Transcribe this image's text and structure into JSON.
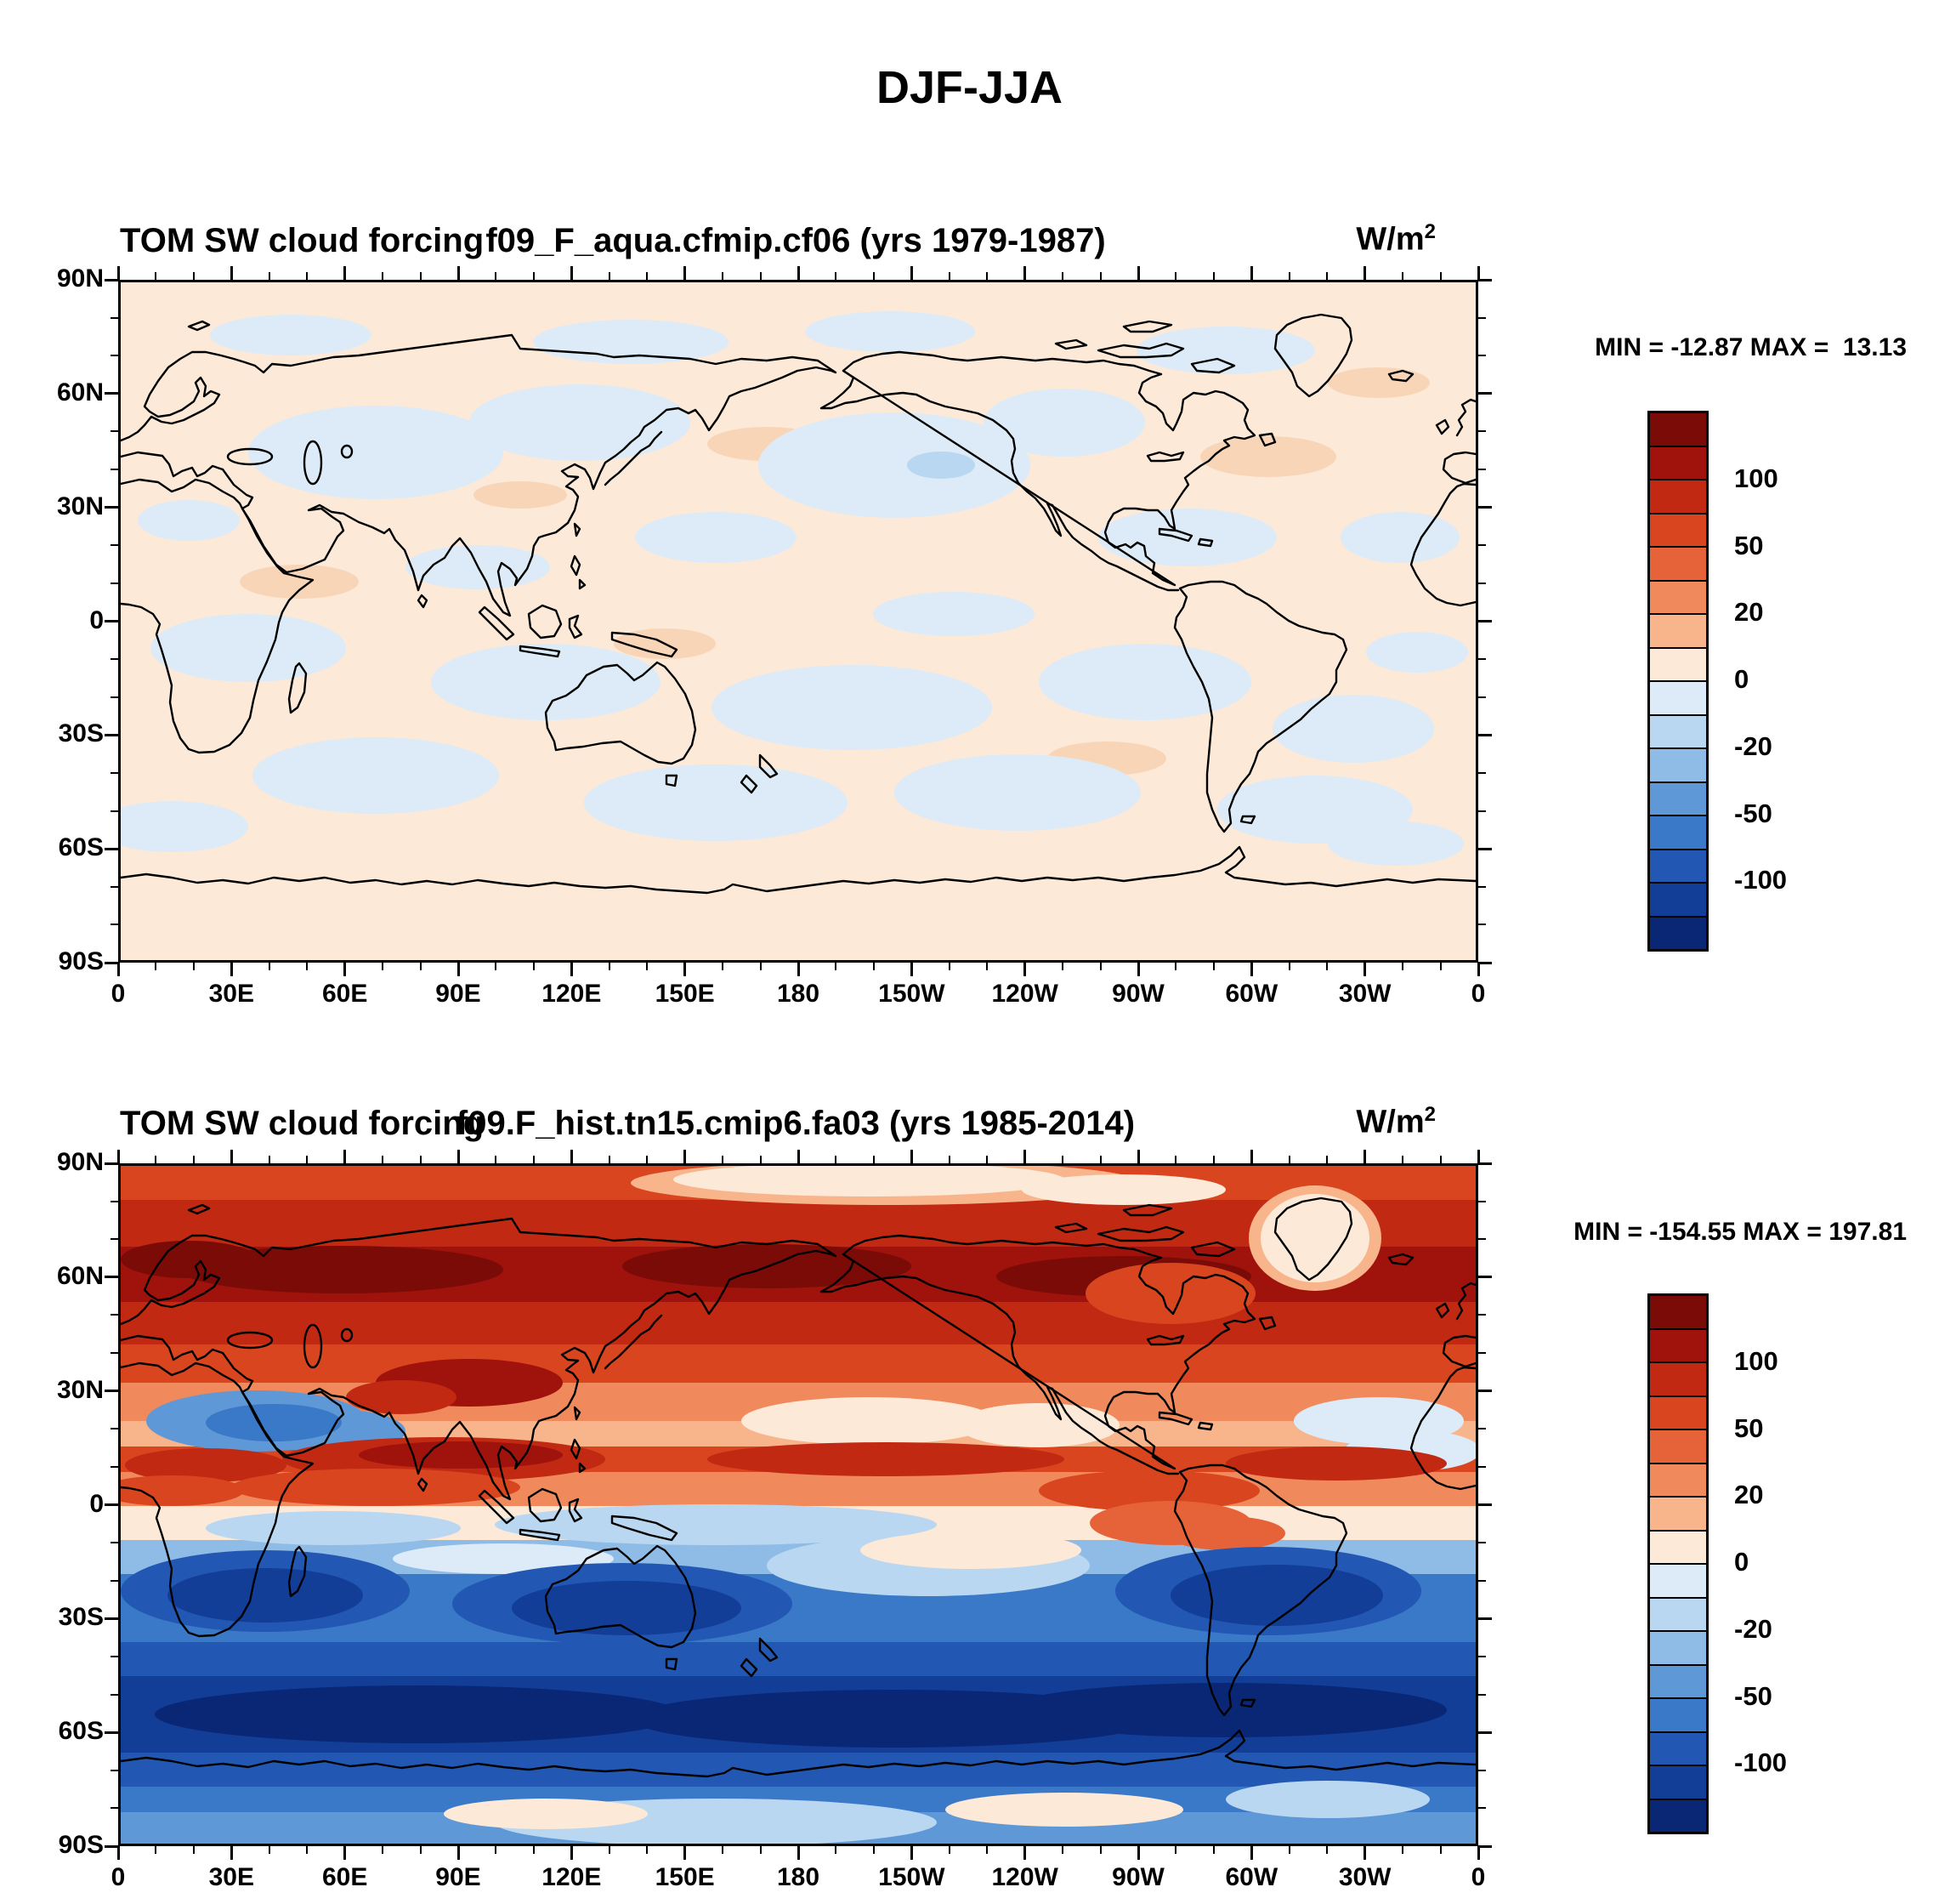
{
  "main_title": "DJF-JJA",
  "panel1": {
    "label": "TOM SW cloud forcing",
    "case": "f09_F_aqua.cfmip.cf06 (yrs 1979-1987)",
    "units_base": "W/m",
    "units_sup": "2",
    "stats": "MIN = -12.87 MAX =  13.13"
  },
  "panel2": {
    "label": "TOM SW cloud forcing",
    "case": "f09.F_hist.tn15.cmip6.fa03 (yrs 1985-2014)",
    "units_base": "W/m",
    "units_sup": "2",
    "stats": "MIN = -154.55 MAX = 197.81"
  },
  "axes": {
    "lat_labels": [
      "90N",
      "60N",
      "30N",
      "0",
      "30S",
      "60S",
      "90S"
    ],
    "lon_labels": [
      "0",
      "30E",
      "60E",
      "90E",
      "120E",
      "150E",
      "180",
      "150W",
      "120W",
      "90W",
      "60W",
      "30W",
      "0"
    ]
  },
  "colorbar": {
    "tick_labels": [
      "100",
      "50",
      "20",
      "0",
      "-20",
      "-50",
      "-100"
    ],
    "labeled_boundary_indices_from_top": [
      2,
      4,
      6,
      8,
      10,
      12,
      14
    ],
    "colors_top_to_bottom": [
      "#7a0b07",
      "#a0120c",
      "#c22912",
      "#d8451f",
      "#e6633a",
      "#f08a5d",
      "#f8b48b",
      "#fce9d8",
      "#dcebf7",
      "#b9d7f0",
      "#8fbce6",
      "#5f98d6",
      "#3a78c8",
      "#2258b4",
      "#123e97",
      "#0a2776"
    ]
  },
  "chart_data": [
    {
      "type": "heatmap",
      "title": "TOM SW cloud forcing f09_F_aqua.cfmip.cf06 (yrs 1979-1987)",
      "subtitle": "DJF-JJA",
      "units": "W/m^2",
      "min": -12.87,
      "max": 13.13,
      "contour_levels_estimated": [
        -120,
        -100,
        -70,
        -50,
        -30,
        -20,
        -10,
        0,
        10,
        20,
        30,
        50,
        70,
        100,
        120
      ],
      "x_tick_labels": [
        "0",
        "30E",
        "60E",
        "90E",
        "120E",
        "150E",
        "180",
        "150W",
        "120W",
        "90W",
        "60W",
        "30W",
        "0"
      ],
      "y_tick_labels": [
        "90N",
        "60N",
        "30N",
        "0",
        "30S",
        "60S",
        "90S"
      ],
      "legend_position": "right",
      "description": "Aquaplanet control run seasonal difference: weak mottled pattern everywhere, values mostly between -10 and +10 W/m^2 (pale blue and pale orange patches only)."
    },
    {
      "type": "heatmap",
      "title": "TOM SW cloud forcing f09.F_hist.tn15.cmip6.fa03 (yrs 1985-2014)",
      "subtitle": "DJF-JJA",
      "units": "W/m^2",
      "min": -154.55,
      "max": 197.81,
      "contour_levels_estimated": [
        -120,
        -100,
        -70,
        -50,
        -30,
        -20,
        -10,
        0,
        10,
        20,
        30,
        50,
        70,
        100,
        120
      ],
      "x_tick_labels": [
        "0",
        "30E",
        "60E",
        "90E",
        "120E",
        "150E",
        "180",
        "150W",
        "120W",
        "90W",
        "60W",
        "30W",
        "0"
      ],
      "y_tick_labels": [
        "90N",
        "60N",
        "30N",
        "0",
        "30S",
        "60S",
        "90S"
      ],
      "legend_position": "right",
      "description": "Historical run seasonal difference: strong positive (red, up to ~+100 and more W/m^2) band across northern mid-to-high latitudes and along the NH tropics; strong negative (blue, below -100 W/m^2) bands over the southern subtropical continents and the Southern Ocean around 40S-65S; near-zero pale band along the equator and over the Arctic/Greenland."
    }
  ]
}
